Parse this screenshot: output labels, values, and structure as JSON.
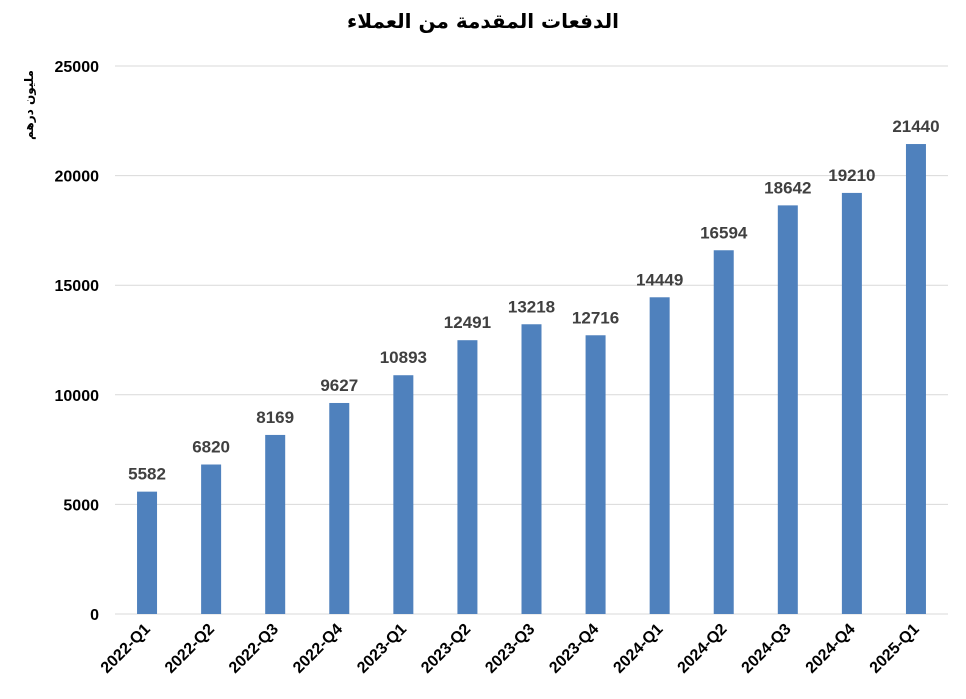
{
  "chart_data": {
    "type": "bar",
    "title": "الدفعات المقدمة من العملاء",
    "ylabel": "مليون درهم",
    "xlabel": "",
    "categories": [
      "2022-Q1",
      "2022-Q2",
      "2022-Q3",
      "2022-Q4",
      "2023-Q1",
      "2023-Q2",
      "2023-Q3",
      "2023-Q4",
      "2024-Q1",
      "2024-Q2",
      "2024-Q3",
      "2024-Q4",
      "2025-Q1"
    ],
    "values": [
      5582,
      6820,
      8169,
      9627,
      10893,
      12491,
      13218,
      12716,
      14449,
      16594,
      18642,
      19210,
      21440
    ],
    "ylim": [
      0,
      25000
    ],
    "yticks": [
      0,
      5000,
      10000,
      15000,
      20000,
      25000
    ],
    "grid": true,
    "legend": "none",
    "bar_color": "#4F81BD",
    "label_color": "#404040"
  }
}
